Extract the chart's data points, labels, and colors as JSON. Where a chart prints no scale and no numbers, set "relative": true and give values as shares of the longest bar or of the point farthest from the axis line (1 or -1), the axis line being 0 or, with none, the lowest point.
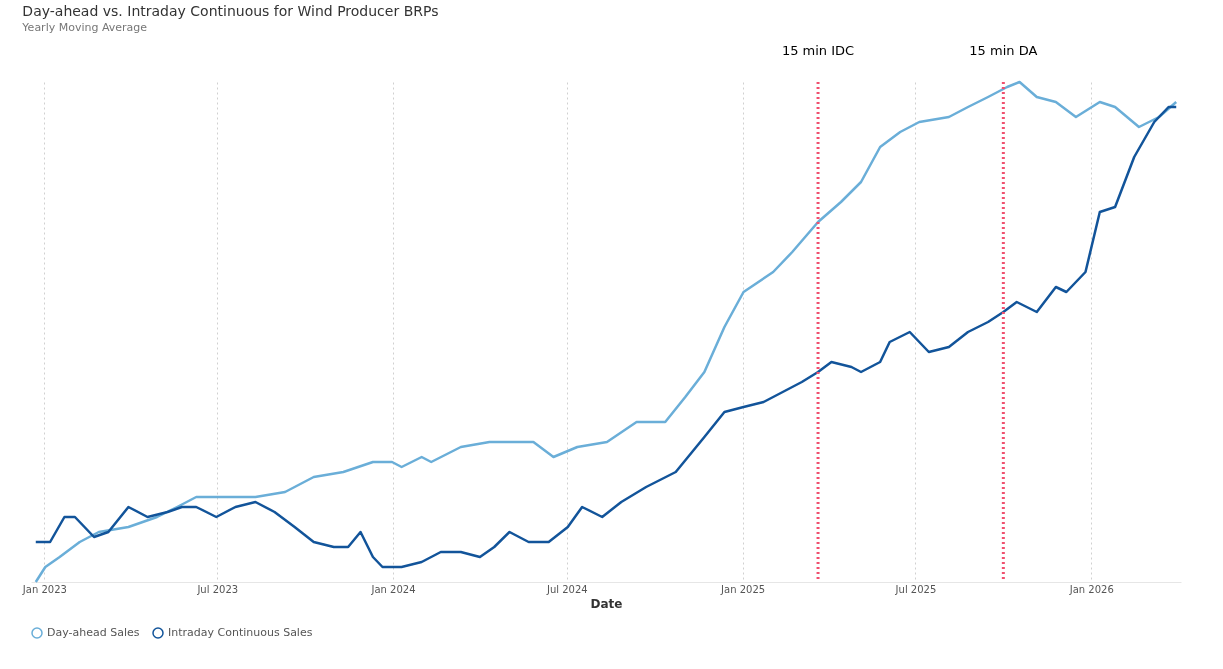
{
  "chart_data": {
    "type": "line",
    "title": "Day-ahead vs. Intraday Continuous for Wind Producer BRPs",
    "subtitle": "Yearly Moving Average",
    "xlabel": "Date",
    "relative": true,
    "grid": "x",
    "legend": "bottom",
    "marker": "none",
    "line_style": "solid",
    "xlim": [
      "2022-12-18",
      "2026-04-05"
    ],
    "xticks": [
      {
        "value": "2023-01-01",
        "label": "Jan 2023"
      },
      {
        "value": "2023-07-01",
        "label": "Jul 2023"
      },
      {
        "value": "2024-01-01",
        "label": "Jan 2024"
      },
      {
        "value": "2024-07-01",
        "label": "Jul 2024"
      },
      {
        "value": "2025-01-01",
        "label": "Jan 2025"
      },
      {
        "value": "2025-07-01",
        "label": "Jul 2025"
      },
      {
        "value": "2026-01-01",
        "label": "Jan 2026"
      }
    ],
    "ref_lines": [
      {
        "axis": "x",
        "value": "2025-03-21",
        "label": "15 min IDC",
        "color": "#f0506e",
        "line_style": "dotted"
      },
      {
        "axis": "x",
        "value": "2025-10-01",
        "label": "15 min DA",
        "color": "#f0506e",
        "line_style": "dotted"
      }
    ],
    "series": [
      {
        "name": "Day-ahead Sales",
        "color": "#6aaed8",
        "x": [
          "2022-12-23",
          "2023-01-02",
          "2023-01-17",
          "2023-02-07",
          "2023-02-27",
          "2023-03-30",
          "2023-04-29",
          "2023-05-20",
          "2023-06-09",
          "2023-07-10",
          "2023-08-10",
          "2023-09-10",
          "2023-10-10",
          "2023-11-10",
          "2023-12-11",
          "2023-12-31",
          "2024-01-10",
          "2024-01-31",
          "2024-02-10",
          "2024-03-12",
          "2024-04-11",
          "2024-05-02",
          "2024-05-27",
          "2024-06-17",
          "2024-07-12",
          "2024-08-12",
          "2024-09-12",
          "2024-10-12",
          "2024-11-02",
          "2024-11-22",
          "2024-12-13",
          "2025-01-02",
          "2025-02-02",
          "2025-02-22",
          "2025-03-21",
          "2025-04-14",
          "2025-05-05",
          "2025-05-25",
          "2025-06-15",
          "2025-07-05",
          "2025-08-05",
          "2025-08-25",
          "2025-09-15",
          "2025-10-05",
          "2025-10-18",
          "2025-11-05",
          "2025-11-25",
          "2025-12-16",
          "2026-01-10",
          "2026-01-26",
          "2026-02-20",
          "2026-03-13",
          "2026-03-31"
        ],
        "values": [
          0,
          0.03,
          0.05,
          0.08,
          0.1,
          0.11,
          0.13,
          0.15,
          0.17,
          0.17,
          0.17,
          0.18,
          0.21,
          0.22,
          0.24,
          0.24,
          0.23,
          0.25,
          0.24,
          0.27,
          0.28,
          0.28,
          0.28,
          0.25,
          0.27,
          0.28,
          0.32,
          0.32,
          0.37,
          0.42,
          0.51,
          0.58,
          0.62,
          0.66,
          0.72,
          0.76,
          0.8,
          0.87,
          0.9,
          0.92,
          0.93,
          0.95,
          0.97,
          0.99,
          1,
          0.97,
          0.96,
          0.93,
          0.96,
          0.95,
          0.91,
          0.93,
          0.96
        ]
      },
      {
        "name": "Intraday Continuous Sales",
        "color": "#12549a",
        "x": [
          "2022-12-23",
          "2023-01-07",
          "2023-01-22",
          "2023-02-02",
          "2023-02-22",
          "2023-03-09",
          "2023-03-30",
          "2023-04-19",
          "2023-05-10",
          "2023-05-25",
          "2023-06-09",
          "2023-06-30",
          "2023-07-20",
          "2023-08-10",
          "2023-08-30",
          "2023-09-20",
          "2023-10-10",
          "2023-10-31",
          "2023-11-15",
          "2023-11-28",
          "2023-12-11",
          "2023-12-21",
          "2024-01-10",
          "2024-01-31",
          "2024-02-20",
          "2024-03-12",
          "2024-04-01",
          "2024-04-16",
          "2024-05-02",
          "2024-05-22",
          "2024-06-12",
          "2024-07-02",
          "2024-07-17",
          "2024-08-07",
          "2024-08-27",
          "2024-09-22",
          "2024-10-23",
          "2024-11-22",
          "2024-12-13",
          "2025-01-02",
          "2025-01-23",
          "2025-02-12",
          "2025-03-04",
          "2025-03-21",
          "2025-04-04",
          "2025-04-25",
          "2025-05-05",
          "2025-05-25",
          "2025-06-04",
          "2025-06-25",
          "2025-07-15",
          "2025-08-05",
          "2025-08-25",
          "2025-09-15",
          "2025-10-01",
          "2025-10-15",
          "2025-11-05",
          "2025-11-25",
          "2025-12-06",
          "2025-12-26",
          "2026-01-10",
          "2026-01-26",
          "2026-02-15",
          "2026-03-08",
          "2026-03-23",
          "2026-03-31"
        ],
        "values": [
          0.08,
          0.08,
          0.13,
          0.13,
          0.09,
          0.1,
          0.15,
          0.13,
          0.14,
          0.15,
          0.15,
          0.13,
          0.15,
          0.16,
          0.14,
          0.11,
          0.08,
          0.07,
          0.07,
          0.1,
          0.05,
          0.03,
          0.03,
          0.04,
          0.06,
          0.06,
          0.05,
          0.07,
          0.1,
          0.08,
          0.08,
          0.11,
          0.15,
          0.13,
          0.16,
          0.19,
          0.22,
          0.29,
          0.34,
          0.35,
          0.36,
          0.38,
          0.4,
          0.42,
          0.44,
          0.43,
          0.42,
          0.44,
          0.48,
          0.5,
          0.46,
          0.47,
          0.5,
          0.52,
          0.54,
          0.56,
          0.54,
          0.59,
          0.58,
          0.62,
          0.74,
          0.75,
          0.85,
          0.92,
          0.95,
          0.95
        ]
      }
    ]
  }
}
